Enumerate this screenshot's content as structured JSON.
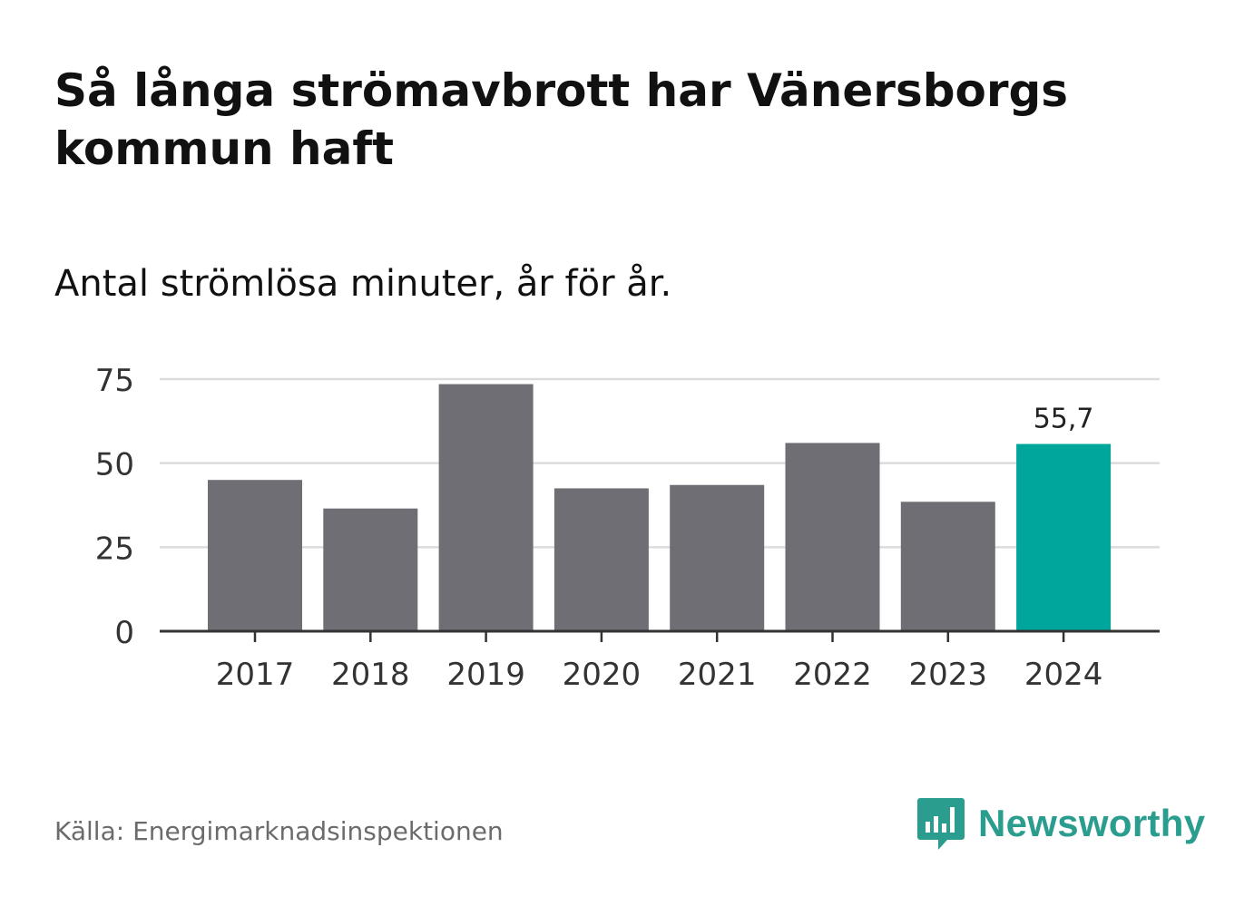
{
  "header": {
    "title": "Så långa strömavbrott har Vänersborgs kommun haft",
    "subtitle": "Antal strömlösa minuter, år för år."
  },
  "footer": {
    "source": "Källa: Energimarknadsinspektionen",
    "brand": "Newsworthy"
  },
  "colors": {
    "bar": "#6f6e74",
    "highlight": "#00a69c",
    "grid": "#dcdcdc",
    "axis": "#333333",
    "brand": "#2a9d8f"
  },
  "icons": {
    "logo": "chat-bubble-bar-chart-icon"
  },
  "chart_data": {
    "type": "bar",
    "title": "Så långa strömavbrott har Vänersborgs kommun haft",
    "subtitle": "Antal strömlösa minuter, år för år.",
    "categories": [
      "2017",
      "2018",
      "2019",
      "2020",
      "2021",
      "2022",
      "2023",
      "2024"
    ],
    "values": [
      45,
      36.5,
      73.5,
      42.5,
      43.5,
      56,
      38.5,
      55.7
    ],
    "highlight_index": 7,
    "data_labels": [
      {
        "index": 7,
        "text": "55,7"
      }
    ],
    "yticks": [
      0,
      25,
      50,
      75
    ],
    "ylim": [
      0,
      75
    ],
    "xlabel": "",
    "ylabel": "",
    "grid": true
  }
}
